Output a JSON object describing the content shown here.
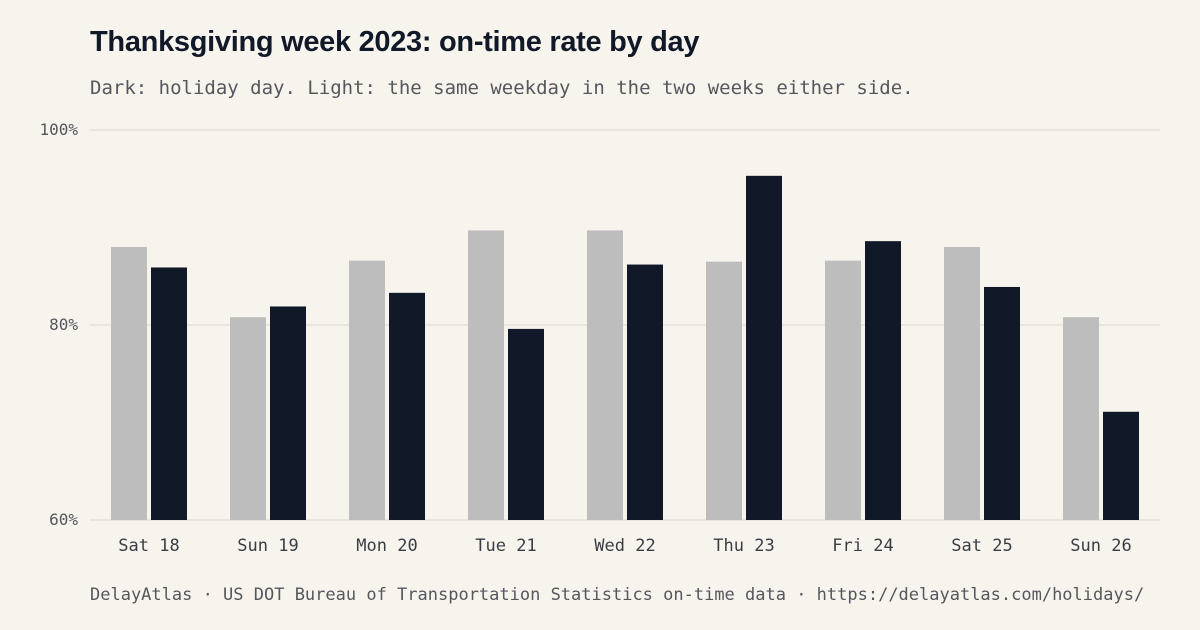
{
  "header": {
    "title": "Thanksgiving week 2023: on-time rate by day",
    "subtitle": "Dark: holiday day. Light: the same weekday in the two weeks either side."
  },
  "footer": {
    "source": "DelayAtlas · US DOT Bureau of Transportation Statistics on-time data · https://delayatlas.com/holidays/"
  },
  "colors": {
    "baseline": "#bdbdbd",
    "holiday": "#111827",
    "grid": "#e4e1da",
    "background": "#f7f4ee"
  },
  "chart_data": {
    "type": "bar",
    "title": "Thanksgiving week 2023: on-time rate by day",
    "subtitle": "Dark: holiday day. Light: the same weekday in the two weeks either side.",
    "categories": [
      "Sat 18",
      "Sun 19",
      "Mon 20",
      "Tue 21",
      "Wed 22",
      "Thu 23",
      "Fri 24",
      "Sat 25",
      "Sun 26"
    ],
    "series": [
      {
        "values": [
          88.0,
          80.8,
          86.6,
          89.7,
          89.7,
          86.5,
          86.6,
          88.0,
          80.8
        ]
      },
      {
        "values": [
          85.9,
          81.9,
          83.3,
          79.6,
          86.2,
          95.3,
          88.6,
          83.9,
          71.1
        ]
      }
    ],
    "ylim": [
      60,
      100
    ],
    "yticks": [
      60,
      80,
      100
    ],
    "ytick_labels": [
      "60%",
      "80%",
      "100%"
    ],
    "grid": true,
    "xlabel": "",
    "ylabel": ""
  }
}
